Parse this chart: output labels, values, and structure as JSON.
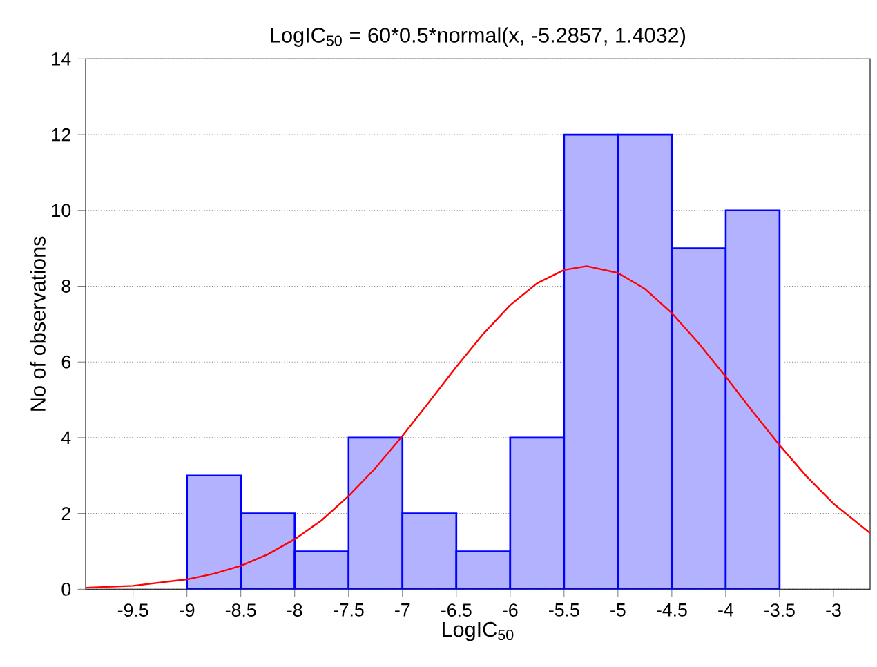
{
  "chart_data": {
    "type": "histogram",
    "title": "LogIC$_{50}$ = 60*0.5*normal(x, -5.2857, 1.4032)",
    "xlabel": "LogIC$_{50}$",
    "ylabel": "No of observations",
    "bins": [
      -9,
      -8.5,
      -8,
      -7.5,
      -7,
      -6.5,
      -6,
      -5.5,
      -5,
      -4.5,
      -4,
      -3.5
    ],
    "values": [
      3,
      2,
      1,
      4,
      2,
      1,
      4,
      12,
      12,
      9,
      10
    ],
    "color": "#0000ff",
    "series": [
      {
        "type": "line",
        "color": "#ff0000",
        "x": [
          -9.94,
          -9.5,
          -9,
          -8.75,
          -8.5,
          -8.25,
          -8,
          -7.75,
          -7.5,
          -7.25,
          -7,
          -6.75,
          -6.5,
          -6.25,
          -6,
          -5.75,
          -5.5,
          -5.29,
          -5,
          -4.75,
          -4.5,
          -4.25,
          -4,
          -3.75,
          -3.5,
          -3.25,
          -3,
          -2.66
        ],
        "values": [
          0.04,
          0.09,
          0.26,
          0.41,
          0.62,
          0.92,
          1.32,
          1.82,
          2.46,
          3.2,
          4.05,
          4.95,
          5.87,
          6.74,
          7.5,
          8.08,
          8.43,
          8.53,
          8.35,
          7.93,
          7.29,
          6.49,
          5.61,
          4.69,
          3.8,
          2.98,
          2.26,
          1.48
        ]
      }
    ],
    "xlim": [
      -9.94,
      -2.66
    ],
    "ylim": [
      0,
      14
    ],
    "xticks": [
      -9.5,
      -9,
      -8.5,
      -8,
      -7.5,
      -7,
      -6.5,
      -6,
      -5.5,
      -5,
      -4.5,
      -4,
      -3.5,
      -3
    ],
    "yticks": [
      0,
      2,
      4,
      6,
      8,
      10,
      12,
      14
    ],
    "grid": "y"
  }
}
